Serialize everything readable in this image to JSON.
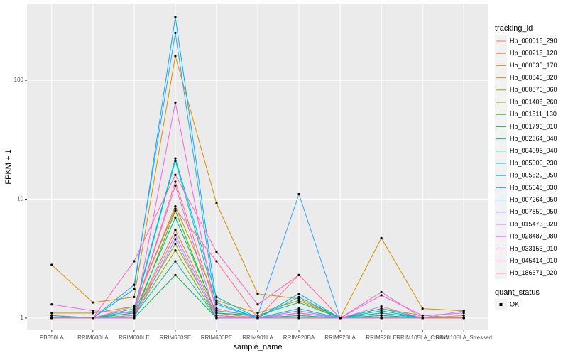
{
  "chart_data": {
    "type": "line",
    "x_label": "sample_name",
    "y_label": "FPKM + 1",
    "log_y": true,
    "grid": true,
    "ylim": [
      0.79,
      442
    ],
    "yticks": [
      1,
      10,
      100
    ],
    "point_color": "#000000",
    "categories": [
      "PB350LA",
      "RRIM600LA",
      "RRIM600LE",
      "RRIM600SE",
      "RRIM600PE",
      "RRIM901LA",
      "RRIM928BA",
      "RRIM928LA",
      "RRIM928LE",
      "RRIM105LA_Control",
      "RRIM105LA_Stressed"
    ],
    "legend_title": "tracking_id",
    "shape_legend": {
      "title": "quant_status",
      "labels": [
        "OK"
      ]
    },
    "series": [
      {
        "name": "Hb_000016_290",
        "color": "#F8766D",
        "values": [
          1.05,
          1.0,
          1.1,
          14,
          1.2,
          1.0,
          1.15,
          1.0,
          1.1,
          1.0,
          1.0
        ]
      },
      {
        "name": "Hb_000215_120",
        "color": "#EA8331",
        "values": [
          1.0,
          1.0,
          1.05,
          5.5,
          1.1,
          1.0,
          1.05,
          1.0,
          1.05,
          1.0,
          1.05
        ]
      },
      {
        "name": "Hb_000635_170",
        "color": "#D89000",
        "values": [
          2.8,
          1.35,
          1.5,
          160,
          9.2,
          1.6,
          1.45,
          1.0,
          4.7,
          1.2,
          1.15
        ]
      },
      {
        "name": "Hb_000846_020",
        "color": "#C09B00",
        "values": [
          1.1,
          1.1,
          1.25,
          8.7,
          1.4,
          1.1,
          1.4,
          1.0,
          1.2,
          1.05,
          1.0
        ]
      },
      {
        "name": "Hb_000876_060",
        "color": "#A3A500",
        "values": [
          1.0,
          1.0,
          1.1,
          4.2,
          1.05,
          1.0,
          1.05,
          1.0,
          1.0,
          1.0,
          1.0
        ]
      },
      {
        "name": "Hb_001405_260",
        "color": "#7CAE00",
        "values": [
          1.0,
          1.0,
          1.05,
          3.7,
          1.0,
          1.0,
          1.0,
          1.0,
          1.0,
          1.0,
          1.0
        ]
      },
      {
        "name": "Hb_001511_130",
        "color": "#39B600",
        "values": [
          1.0,
          1.0,
          1.0,
          8.0,
          1.05,
          1.0,
          1.1,
          1.0,
          1.05,
          1.0,
          1.0
        ]
      },
      {
        "name": "Hb_001796_010",
        "color": "#00BB4E",
        "values": [
          1.0,
          1.0,
          1.0,
          2.3,
          1.0,
          1.0,
          1.0,
          1.0,
          1.0,
          1.0,
          1.0
        ]
      },
      {
        "name": "Hb_002864_040",
        "color": "#00BF7D",
        "values": [
          1.0,
          1.0,
          1.1,
          7.0,
          1.1,
          1.05,
          1.35,
          1.0,
          1.15,
          1.0,
          1.0
        ]
      },
      {
        "name": "Hb_004096_040",
        "color": "#00C1A3",
        "values": [
          1.0,
          1.0,
          1.05,
          3.0,
          1.0,
          1.0,
          1.05,
          1.0,
          1.1,
          1.0,
          1.0
        ]
      },
      {
        "name": "Hb_005000_230",
        "color": "#00BFC4",
        "values": [
          1.0,
          1.0,
          1.15,
          21,
          1.3,
          1.0,
          1.2,
          1.0,
          1.2,
          1.0,
          1.0
        ]
      },
      {
        "name": "Hb_005529_050",
        "color": "#00BAE0",
        "values": [
          1.0,
          1.0,
          1.2,
          22,
          1.5,
          1.0,
          1.6,
          1.0,
          1.1,
          1.0,
          1.0
        ]
      },
      {
        "name": "Hb_005648_030",
        "color": "#00B0F6",
        "values": [
          1.05,
          1.0,
          1.75,
          340,
          1.35,
          1.0,
          1.5,
          1.0,
          1.05,
          1.0,
          1.0
        ]
      },
      {
        "name": "Hb_007264_050",
        "color": "#35A2FF",
        "values": [
          1.0,
          1.0,
          1.9,
          250,
          1.15,
          1.05,
          11,
          1.0,
          1.0,
          1.0,
          1.0
        ]
      },
      {
        "name": "Hb_007850_050",
        "color": "#9590FF",
        "values": [
          1.0,
          1.0,
          1.0,
          4.6,
          1.0,
          1.0,
          1.15,
          1.0,
          1.0,
          1.0,
          1.15
        ]
      },
      {
        "name": "Hb_015473_020",
        "color": "#C77CFF",
        "values": [
          1.0,
          1.0,
          1.05,
          5.0,
          1.05,
          1.0,
          1.1,
          1.0,
          1.25,
          1.0,
          1.0
        ]
      },
      {
        "name": "Hb_028487_080",
        "color": "#E76BF3",
        "values": [
          1.3,
          1.15,
          1.1,
          13,
          1.0,
          1.0,
          1.1,
          1.0,
          1.55,
          1.05,
          1.1
        ]
      },
      {
        "name": "Hb_033153_010",
        "color": "#FA62DB",
        "values": [
          1.0,
          1.0,
          1.0,
          65,
          1.05,
          1.0,
          1.0,
          1.0,
          1.0,
          1.0,
          1.0
        ]
      },
      {
        "name": "Hb_045414_010",
        "color": "#FF62BC",
        "values": [
          1.0,
          1.0,
          3.0,
          16,
          3.6,
          1.3,
          2.3,
          1.0,
          1.65,
          1.0,
          1.0
        ]
      },
      {
        "name": "Hb_186671_020",
        "color": "#FF6C91",
        "values": [
          1.0,
          1.0,
          1.25,
          8.3,
          3.0,
          1.0,
          2.3,
          1.0,
          1.0,
          1.0,
          1.0
        ]
      }
    ]
  }
}
